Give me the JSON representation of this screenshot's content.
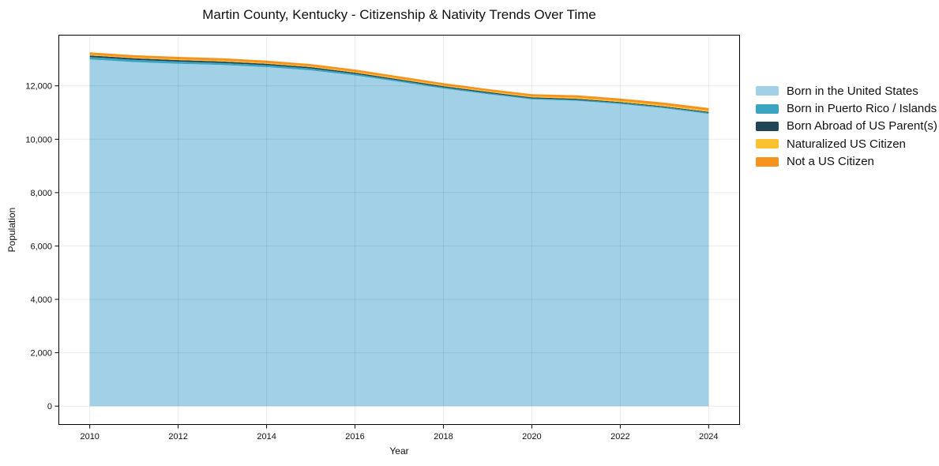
{
  "chart_data": {
    "type": "area",
    "stacked": true,
    "title": "Martin County, Kentucky - Citizenship & Nativity Trends Over Time",
    "xlabel": "Year",
    "ylabel": "Population",
    "x": [
      2010,
      2011,
      2012,
      2013,
      2014,
      2015,
      2016,
      2017,
      2018,
      2019,
      2020,
      2021,
      2022,
      2023,
      2024
    ],
    "series": [
      {
        "name": "Born in the United States",
        "color": "#A2D1E7",
        "values": [
          12990,
          12890,
          12830,
          12780,
          12700,
          12580,
          12390,
          12150,
          11900,
          11690,
          11490,
          11440,
          11320,
          11160,
          10950
        ]
      },
      {
        "name": "Born in Puerto Rico / Islands",
        "color": "#39A5C0",
        "values": [
          90,
          85,
          80,
          78,
          75,
          70,
          60,
          52,
          48,
          45,
          42,
          42,
          40,
          40,
          45
        ]
      },
      {
        "name": "Born Abroad of US Parent(s)",
        "color": "#1F4557",
        "values": [
          60,
          58,
          55,
          55,
          52,
          50,
          45,
          42,
          40,
          38,
          35,
          35,
          32,
          30,
          30
        ]
      },
      {
        "name": "Naturalized US Citizen",
        "color": "#FBC12E",
        "values": [
          25,
          26,
          28,
          30,
          30,
          30,
          32,
          32,
          35,
          35,
          40,
          45,
          45,
          48,
          50
        ]
      },
      {
        "name": "Not a US Citizen",
        "color": "#F6921E",
        "values": [
          90,
          90,
          92,
          92,
          90,
          88,
          85,
          82,
          80,
          78,
          80,
          85,
          90,
          92,
          95
        ]
      }
    ],
    "xticks": [
      2010,
      2012,
      2014,
      2016,
      2018,
      2020,
      2022,
      2024
    ],
    "xtick_labels": [
      "2010",
      "2012",
      "2014",
      "2016",
      "2018",
      "2020",
      "2022",
      "2024"
    ],
    "yticks": [
      0,
      2000,
      4000,
      6000,
      8000,
      10000,
      12000
    ],
    "ytick_labels": [
      "0",
      "2,000",
      "4,000",
      "6,000",
      "8,000",
      "10,000",
      "12,000"
    ],
    "xlim": [
      2009.3,
      2024.7
    ],
    "ylim": [
      -690,
      13900
    ],
    "grid": true,
    "legend_position": "right"
  }
}
